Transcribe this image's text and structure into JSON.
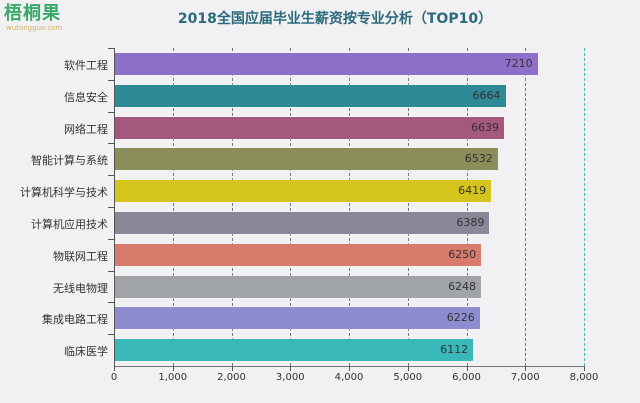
{
  "logo": {
    "main": "梧桐果",
    "sub": "wutongguo.com"
  },
  "chart_data": {
    "type": "bar",
    "orientation": "horizontal",
    "title": "2018全国应届毕业生薪资按专业分析（TOP10）",
    "xlabel": "",
    "ylabel": "",
    "xlim": [
      0,
      8000
    ],
    "x_ticks": [
      "0",
      "1,000",
      "2,000",
      "3,000",
      "4,000",
      "5,000",
      "6,000",
      "7,000",
      "8,000"
    ],
    "grid": "vertical dashed",
    "categories": [
      "软件工程",
      "信息安全",
      "网络工程",
      "智能计算与系统",
      "计算机科学与技术",
      "计算机应用技术",
      "物联网工程",
      "无线电物理",
      "集成电路工程",
      "临床医学"
    ],
    "values": [
      7210,
      6664,
      6639,
      6532,
      6419,
      6389,
      6250,
      6248,
      6226,
      6112
    ],
    "colors": [
      "#8f70c8",
      "#2e8a96",
      "#a4587e",
      "#8a8c5a",
      "#d4c41c",
      "#8a8898",
      "#d87a6c",
      "#a0a4a8",
      "#8e8cd0",
      "#38b8b8"
    ]
  }
}
